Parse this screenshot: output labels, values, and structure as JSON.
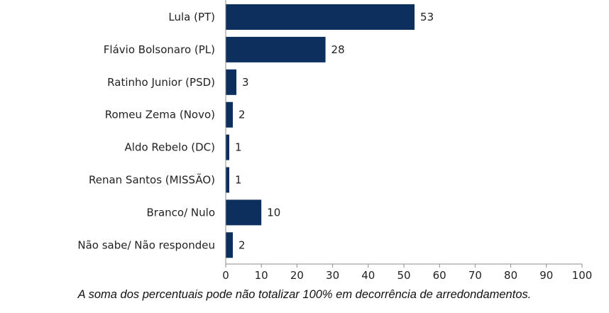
{
  "chart_data": {
    "type": "bar",
    "orientation": "horizontal",
    "categories": [
      "Lula (PT)",
      "Flávio Bolsonaro (PL)",
      "Ratinho Junior (PSD)",
      "Romeu Zema (Novo)",
      "Aldo Rebelo (DC)",
      "Renan Santos (MISSÃO)",
      "Branco/ Nulo",
      "Não sabe/ Não respondeu"
    ],
    "values": [
      53,
      28,
      3,
      2,
      1,
      1,
      10,
      2
    ],
    "xlim": [
      0,
      100
    ],
    "xticks": [
      0,
      10,
      20,
      30,
      40,
      50,
      60,
      70,
      80,
      90,
      100
    ],
    "grid": false,
    "bar_color": "#0d2f5e",
    "axis_color": "#8c8c8c"
  },
  "footnote": "A soma dos percentuais pode não totalizar 100% em decorrência de arredondamentos."
}
